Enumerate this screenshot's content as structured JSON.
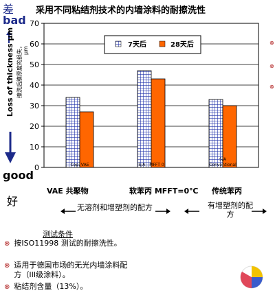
{
  "title": "采用不同粘结剂技术的内墙涂料的耐擦洗性",
  "quality": {
    "bad_cn": "差",
    "bad": "bad",
    "good": "good",
    "good_cn": "好"
  },
  "chart_data": {
    "type": "bar",
    "ylabel": "Loss of thickness  μm",
    "ylabel_cn": "擦洗后膜厚度的损失，",
    "yunit": "μm",
    "ylim": [
      0,
      70
    ],
    "yticks": [
      0,
      10,
      20,
      30,
      40,
      50,
      60,
      70
    ],
    "grid": true,
    "legend_position": "top-center",
    "categories": [
      "Cop. VAE",
      "S/A - MFFT 0",
      "S/A Conventional"
    ],
    "series": [
      {
        "name": "7天后",
        "values": [
          34,
          47,
          33
        ],
        "color": "#ffffff",
        "pattern": "grid-blue"
      },
      {
        "name": "28天后",
        "values": [
          27,
          43,
          30
        ],
        "color": "#ff6600",
        "pattern": "solid"
      }
    ]
  },
  "category_main_labels": [
    "VAE 共聚物",
    "软苯丙  MFFT=0℃",
    "传统苯丙"
  ],
  "group_notes": [
    "无溶剂和增塑剂的配方",
    "有增塑剂的配方"
  ],
  "conditions": {
    "heading": "测试条件",
    "items": [
      "按ISO11998 测试的耐擦洗性。",
      "适用于德国市场的无光内墙涂料配方（III级涂料）。",
      "粘结剂含量（13%）。"
    ]
  },
  "icons": {
    "bullet": "x-circle-bullet-icon",
    "decor": "pie-chart-icon",
    "arrow_up": "up-arrow-icon",
    "arrow_down": "down-arrow-icon"
  },
  "colors": {
    "blue": "#1c2a8a",
    "orange": "#ff6600",
    "bullet": "#b02020"
  }
}
